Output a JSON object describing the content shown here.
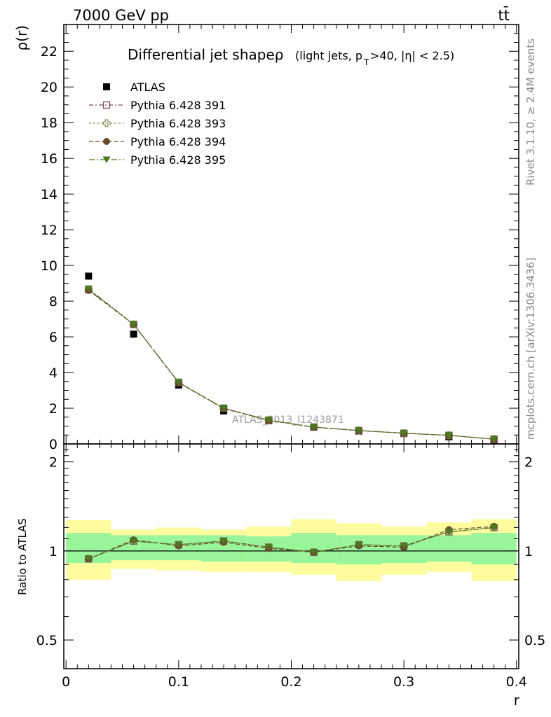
{
  "header": {
    "left": "7000 GeV pp",
    "right": "tt̄"
  },
  "side_labels": {
    "rivet": "Rivet 3.1.10, ≥ 2.4M events",
    "mcplots": "mcplots.cern.ch [arXiv:1306.3436]"
  },
  "watermark": "ATLAS_2013_I1243871",
  "colors": {
    "atlas": "#000000",
    "p391": "#7a4a5e",
    "p393": "#8a8f5a",
    "p394": "#6b4a2e",
    "p395": "#4a7a1e",
    "band_inner": "#99f59a",
    "band_outer": "#fdfd9f"
  },
  "chart_data": [
    {
      "type": "scatter",
      "title_main": "Differential jet shapeρ",
      "title_sub": "(light jets, p",
      "title_sub_T": "T",
      "title_sub_rest": ">40, |η| < 2.5)",
      "ylabel": "ρ(r)",
      "xlabel": "r",
      "xlim": [
        -0.002,
        0.402
      ],
      "ylim": [
        0,
        23.5
      ],
      "yticks": [
        0,
        2,
        4,
        6,
        8,
        10,
        12,
        14,
        16,
        18,
        20,
        22
      ],
      "x": [
        0.02,
        0.06,
        0.1,
        0.14,
        0.18,
        0.22,
        0.26,
        0.3,
        0.34,
        0.38
      ],
      "series": [
        {
          "name": "ATLAS",
          "marker": "filled-square",
          "values": [
            9.4,
            6.15,
            3.3,
            1.85,
            1.3,
            0.95,
            0.72,
            0.58,
            0.4,
            0.22
          ]
        },
        {
          "name": "Pythia 6.428 391",
          "marker": "open-square",
          "values": [
            8.65,
            6.7,
            3.45,
            2.0,
            1.33,
            0.94,
            0.75,
            0.6,
            0.48,
            0.27
          ]
        },
        {
          "name": "Pythia 6.428 393",
          "marker": "open-cross",
          "values": [
            8.65,
            6.7,
            3.45,
            2.0,
            1.33,
            0.94,
            0.75,
            0.6,
            0.48,
            0.27
          ]
        },
        {
          "name": "Pythia 6.428 394",
          "marker": "filled-circle",
          "values": [
            8.6,
            6.7,
            3.43,
            1.98,
            1.32,
            0.94,
            0.75,
            0.6,
            0.48,
            0.27
          ]
        },
        {
          "name": "Pythia 6.428 395",
          "marker": "filled-triangle-down",
          "values": [
            8.7,
            6.7,
            3.45,
            2.0,
            1.33,
            0.94,
            0.75,
            0.6,
            0.48,
            0.27
          ]
        }
      ]
    },
    {
      "type": "scatter",
      "ylabel": "Ratio to ATLAS",
      "xlabel": "r",
      "scale": "log",
      "xlim": [
        -0.002,
        0.402
      ],
      "ylim": [
        0.4,
        2.3
      ],
      "yticks": [
        0.5,
        1,
        2
      ],
      "xticks": [
        0,
        0.1,
        0.2,
        0.3,
        0.4
      ],
      "x": [
        0.02,
        0.06,
        0.1,
        0.14,
        0.18,
        0.22,
        0.26,
        0.3,
        0.34,
        0.38
      ],
      "bin_edges": [
        0.0,
        0.04,
        0.08,
        0.12,
        0.16,
        0.2,
        0.24,
        0.28,
        0.32,
        0.36,
        0.4
      ],
      "band_inner": [
        [
          0.91,
          1.15
        ],
        [
          0.93,
          1.13
        ],
        [
          0.93,
          1.13
        ],
        [
          0.92,
          1.13
        ],
        [
          0.92,
          1.12
        ],
        [
          0.91,
          1.15
        ],
        [
          0.9,
          1.13
        ],
        [
          0.91,
          1.13
        ],
        [
          0.92,
          1.13
        ],
        [
          0.9,
          1.15
        ]
      ],
      "band_outer": [
        [
          0.8,
          1.27
        ],
        [
          0.87,
          1.18
        ],
        [
          0.86,
          1.2
        ],
        [
          0.85,
          1.18
        ],
        [
          0.85,
          1.21
        ],
        [
          0.83,
          1.28
        ],
        [
          0.79,
          1.24
        ],
        [
          0.83,
          1.21
        ],
        [
          0.85,
          1.25
        ],
        [
          0.79,
          1.28
        ]
      ],
      "series": [
        {
          "name": "Pythia 6.428 391",
          "values": [
            0.94,
            1.08,
            1.05,
            1.08,
            1.03,
            0.99,
            1.05,
            1.04,
            1.16,
            1.2
          ]
        },
        {
          "name": "Pythia 6.428 393",
          "values": [
            0.94,
            1.08,
            1.05,
            1.08,
            1.03,
            0.99,
            1.05,
            1.04,
            1.16,
            1.2
          ]
        },
        {
          "name": "Pythia 6.428 394",
          "values": [
            0.94,
            1.09,
            1.04,
            1.07,
            1.02,
            0.99,
            1.04,
            1.03,
            1.18,
            1.21
          ]
        },
        {
          "name": "Pythia 6.428 395",
          "values": [
            0.94,
            1.08,
            1.05,
            1.08,
            1.03,
            0.99,
            1.05,
            1.04,
            1.16,
            1.2
          ]
        }
      ]
    }
  ]
}
